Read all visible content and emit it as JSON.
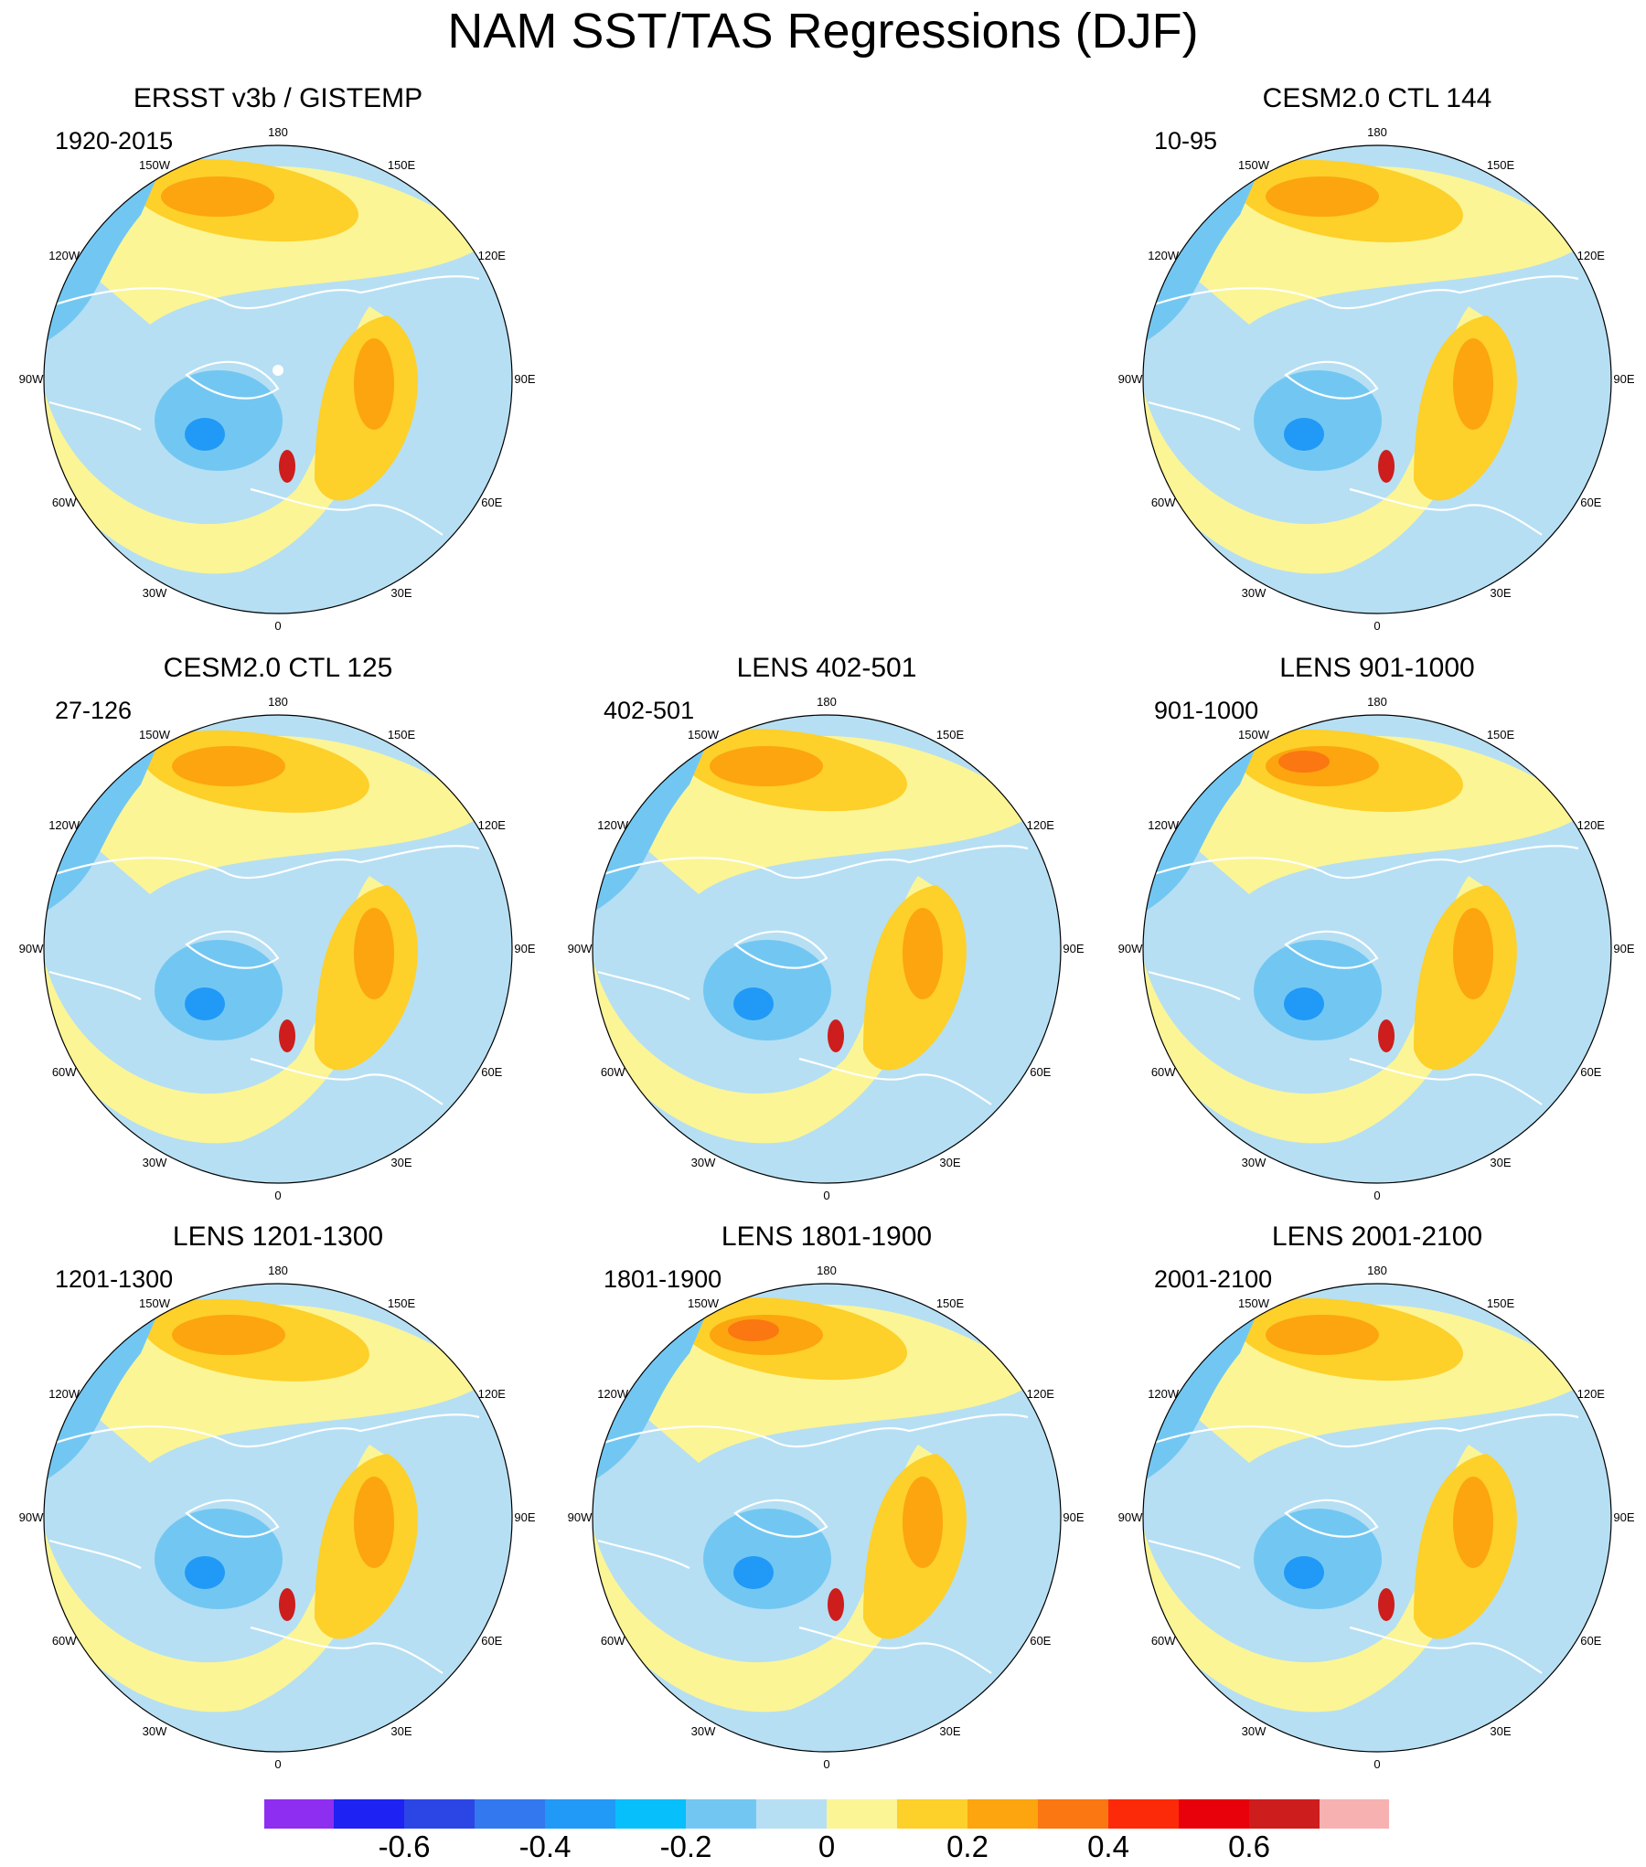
{
  "title": "NAM SST/TAS Regressions (DJF)",
  "longitude_labels": [
    "180",
    "150E",
    "120E",
    "90E",
    "60E",
    "30E",
    "0",
    "30W",
    "60W",
    "90W",
    "120W",
    "150W"
  ],
  "panels": [
    {
      "title": "ERSST v3b / GISTEMP",
      "years": "1920-2015",
      "layout": "r0c0",
      "north_center": "dots"
    },
    {
      "title": "CESM2.0 CTL 144",
      "years": "10-95",
      "layout": "r0c2"
    },
    {
      "title": "CESM2.0 CTL 125",
      "years": "27-126",
      "layout": "r1c0"
    },
    {
      "title": "LENS 402-501",
      "years": "402-501",
      "layout": "r1c1"
    },
    {
      "title": "LENS 901-1000",
      "years": "901-1000",
      "layout": "r1c2"
    },
    {
      "title": "LENS 1201-1300",
      "years": "1201-1300",
      "layout": "r2c0"
    },
    {
      "title": "LENS 1801-1900",
      "years": "1801-1900",
      "layout": "r2c1"
    },
    {
      "title": "LENS 2001-2100",
      "years": "2001-2100",
      "layout": "r2c2"
    }
  ],
  "colorbar": {
    "colors": [
      "#8e2ef0",
      "#1e22f2",
      "#2c46e6",
      "#3378ee",
      "#2199f7",
      "#07bffa",
      "#72c7f2",
      "#b6dff3",
      "#fbf596",
      "#fdd02a",
      "#fca50f",
      "#fb7711",
      "#fd2a0a",
      "#e8000a",
      "#cd1d1c",
      "#f7b1b1"
    ],
    "ticks": [
      "-0.6",
      "-0.4",
      "-0.2",
      "0",
      "0.2",
      "0.4",
      "0.6"
    ]
  },
  "colors": {
    "ocean_background": "#b6dff3",
    "positive_weak": "#fbf596",
    "positive_mid": "#fdd02a",
    "positive_strong": "#fca50f",
    "positive_stronger": "#fb7711",
    "negative_weak": "#72c7f2",
    "negative_mid": "#2199f7",
    "peak": "#cd1d1c"
  }
}
